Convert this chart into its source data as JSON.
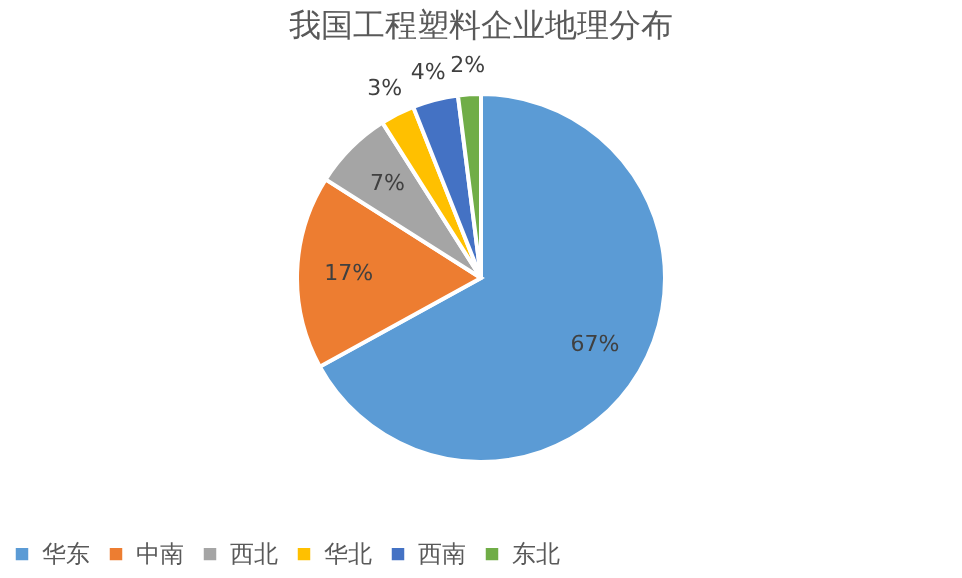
{
  "chart_data": {
    "type": "pie",
    "title": "我国工程塑料企业地理分布",
    "categories": [
      "华东",
      "中南",
      "西北",
      "华北",
      "西南",
      "东北"
    ],
    "values": [
      67,
      17,
      7,
      3,
      4,
      2
    ],
    "colors": [
      "#5b9bd5",
      "#ed7d31",
      "#a5a5a5",
      "#ffc000",
      "#4472c4",
      "#70ad47"
    ],
    "value_labels": [
      "67%",
      "17%",
      "7%",
      "3%",
      "4%",
      "2%"
    ],
    "legend": "bottom"
  }
}
